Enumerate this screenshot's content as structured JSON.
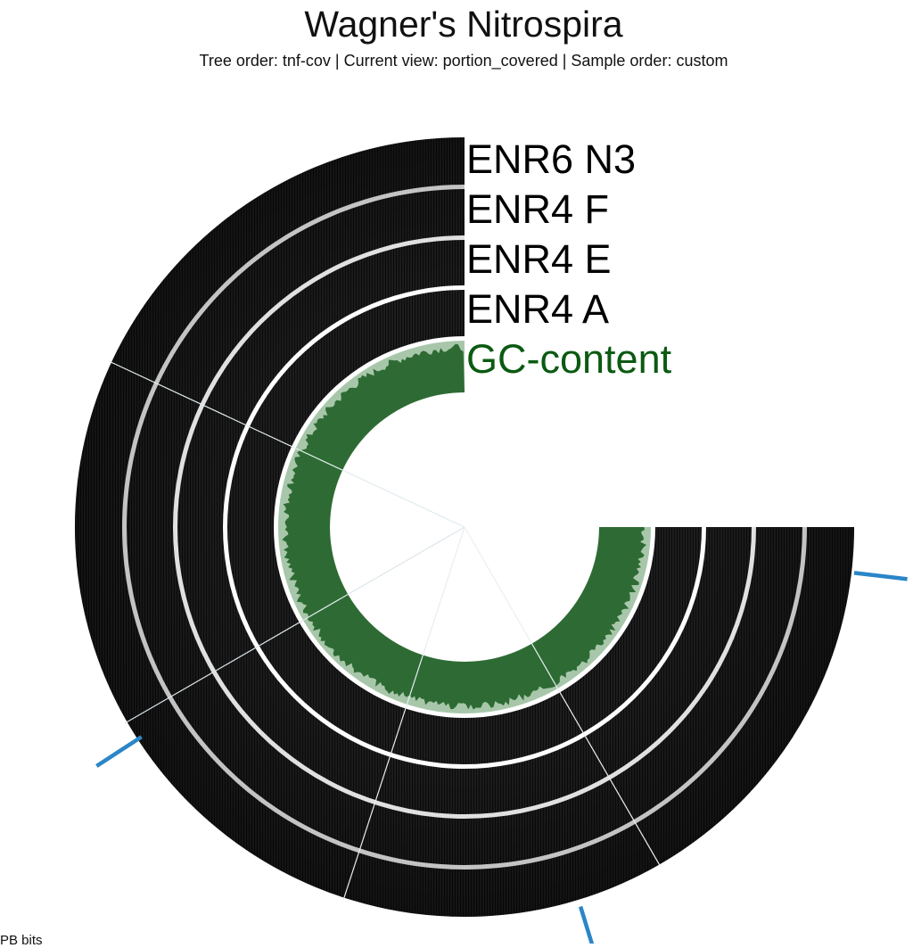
{
  "header": {
    "title": "Wagner's Nitrospira",
    "subtitle": "Tree order: tnf-cov | Current view: portion_covered | Sample order: custom"
  },
  "layers": [
    {
      "label": "ENR6 N3",
      "color": "#000000"
    },
    {
      "label": "ENR4 F",
      "color": "#000000"
    },
    {
      "label": "ENR4 E",
      "color": "#000000"
    },
    {
      "label": "ENR4 A",
      "color": "#000000"
    },
    {
      "label": "GC-content",
      "color": "#0b5a12"
    }
  ],
  "colors": {
    "ring_fill": "#1c1c1c",
    "ring_dark": "#0c0c0c",
    "gc_fill": "#2e6b34",
    "gc_halo": "#a8c7aa",
    "marker": "#2a86c8"
  },
  "footer": {
    "partial_label": "PB  bits"
  }
}
